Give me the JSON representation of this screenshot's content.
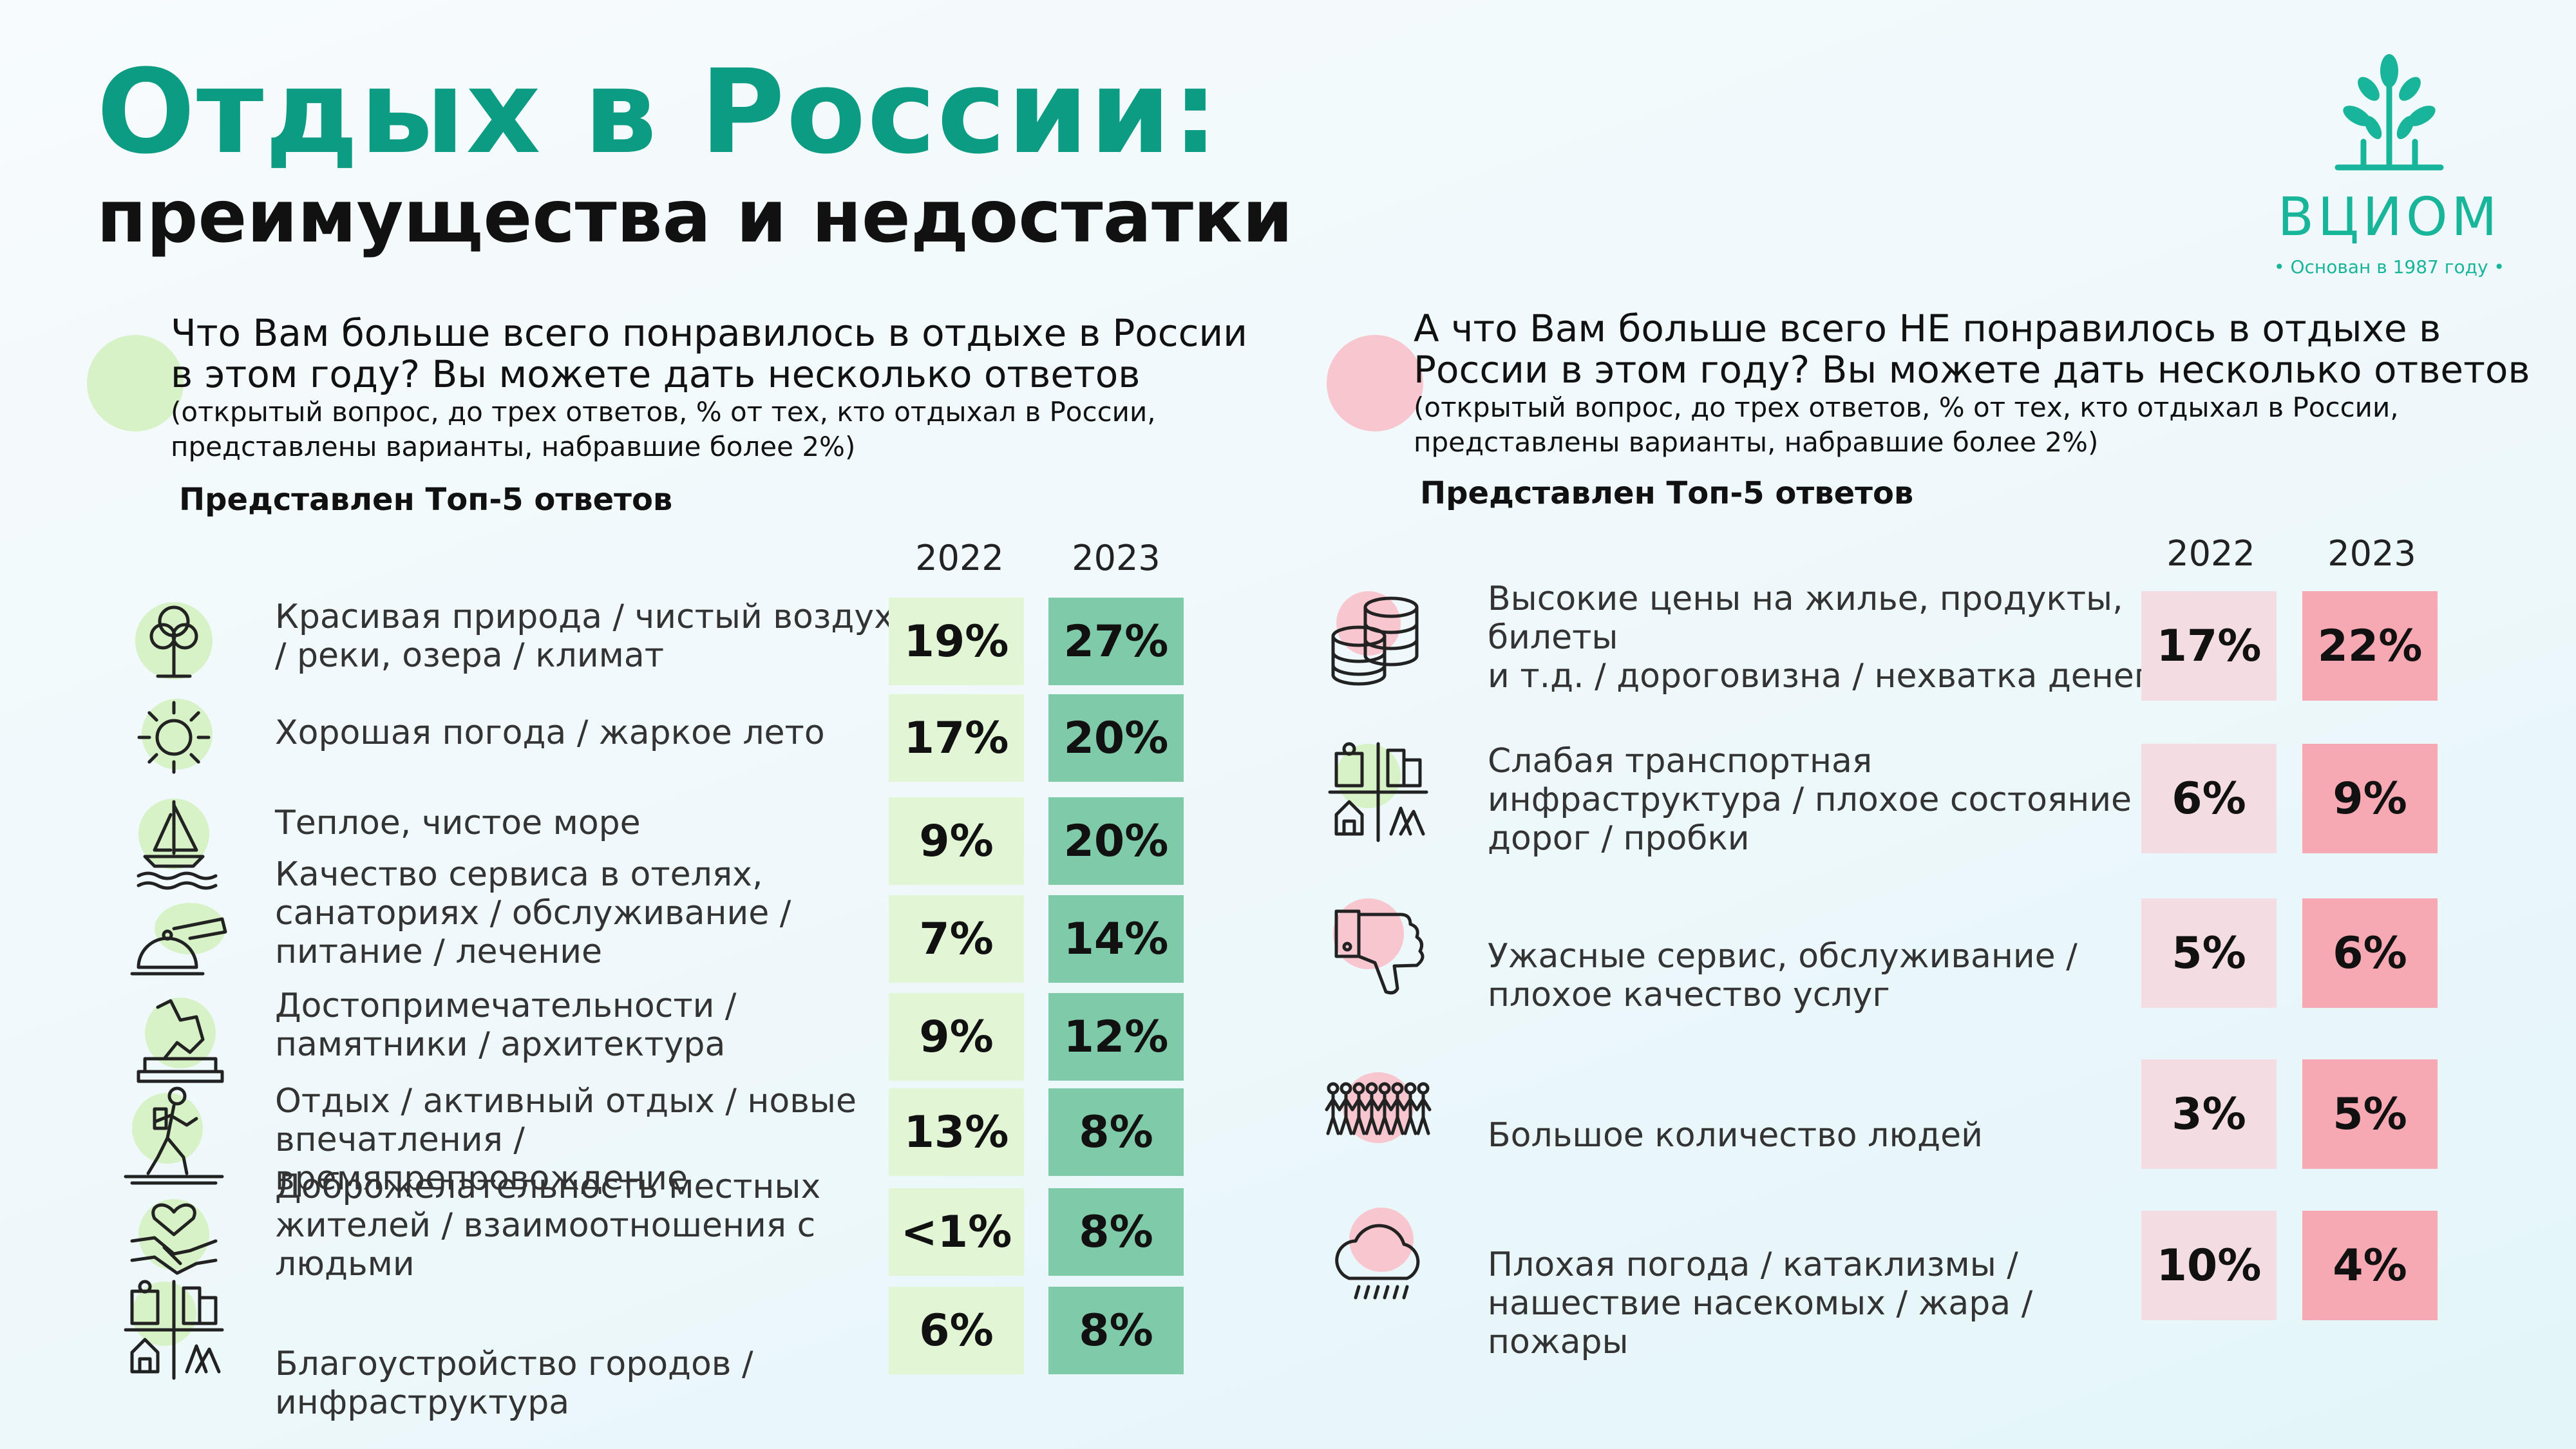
{
  "title": "Отдых в России:",
  "subtitle": "преимущества и недостатки",
  "logo": {
    "name": "ВЦИОМ",
    "tagline": "• Основан в 1987 году •",
    "color": "#19b59a"
  },
  "colors": {
    "brand": "#0c9b83",
    "liked_2022": "#e2f6d6",
    "liked_2023": "#7fcaa8",
    "disliked_2022": "#f3dde2",
    "disliked_2023": "#f6a8b3"
  },
  "left": {
    "question_line1": "Что Вам больше всего понравилось в отдыхе в России",
    "question_line2": "в этом году? Вы можете дать несколько ответов",
    "note_line1": "(открытый вопрос, до трех ответов, % от тех, кто отдыхал в России,",
    "note_line2": "представлены варианты, набравшие более 2%)",
    "top5": "Представлен Топ-5 ответов",
    "year1": "2022",
    "year2": "2023",
    "items": [
      {
        "icon": "tree-icon",
        "lines": [
          "Красивая природа / чистый воздух",
          "/ реки, озера / климат"
        ],
        "v2022": "19%",
        "v2023": "27%"
      },
      {
        "icon": "sun-icon",
        "lines": [
          "Хорошая погода / жаркое лето"
        ],
        "v2022": "17%",
        "v2023": "20%"
      },
      {
        "icon": "sailboat-icon",
        "lines": [
          "Теплое, чистое море"
        ],
        "v2022": "9%",
        "v2023": "20%"
      },
      {
        "icon": "service-bell-icon",
        "lines": [
          "Качество сервиса в отелях,",
          "санаториях / обслуживание /",
          "питание / лечение"
        ],
        "v2022": "7%",
        "v2023": "14%"
      },
      {
        "icon": "monument-icon",
        "lines": [
          "Достопримечательности /",
          "памятники / архитектура"
        ],
        "v2022": "9%",
        "v2023": "12%"
      },
      {
        "icon": "hiker-icon",
        "lines": [
          "Отдых / активный отдых / новые",
          "впечатления /",
          "времяпрепровождение"
        ],
        "v2022": "13%",
        "v2023": "8%"
      },
      {
        "icon": "handshake-heart-icon",
        "lines": [
          "Доброжелательность местных",
          "жителей / взаимоотношения с",
          "людьми"
        ],
        "v2022": "<1%",
        "v2023": "8%"
      },
      {
        "icon": "city-icon",
        "lines": [
          "Благоустройство городов /",
          "инфраструктура"
        ],
        "v2022": "6%",
        "v2023": "8%"
      }
    ]
  },
  "right": {
    "question_line1": "А что Вам больше всего НЕ понравилось в отдыхе в",
    "question_line2": "России в этом году? Вы можете дать несколько ответов",
    "note_line1": "(открытый вопрос, до трех ответов, % от тех, кто отдыхал в России,",
    "note_line2": "представлены варианты, набравшие более 2%)",
    "top5": "Представлен Топ-5 ответов",
    "year1": "2022",
    "year2": "2023",
    "items": [
      {
        "icon": "coins-icon",
        "lines": [
          "Высокие цены на жилье, продукты,",
          "билеты",
          "и т.д. / дороговизна / нехватка денег"
        ],
        "v2022": "17%",
        "v2023": "22%"
      },
      {
        "icon": "city-icon",
        "lines": [
          "Слабая транспортная",
          "инфраструктура / плохое состояние",
          "дорог / пробки"
        ],
        "v2022": "6%",
        "v2023": "9%"
      },
      {
        "icon": "thumbs-down-icon",
        "lines": [
          "Ужасные сервис, обслуживание /",
          "плохое качество услуг"
        ],
        "v2022": "5%",
        "v2023": "6%"
      },
      {
        "icon": "crowd-icon",
        "lines": [
          "Большое количество людей"
        ],
        "v2022": "3%",
        "v2023": "5%"
      },
      {
        "icon": "rain-cloud-icon",
        "lines": [
          "Плохая погода / катаклизмы /",
          "нашествие насекомых / жара /",
          "пожары"
        ],
        "v2022": "10%",
        "v2023": "4%"
      }
    ]
  }
}
